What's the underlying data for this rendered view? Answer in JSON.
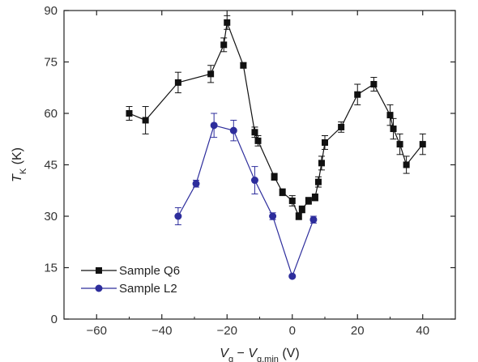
{
  "chart_data": {
    "type": "scatter",
    "xlabel": {
      "main": "V",
      "sub1": "g",
      "minus": " − ",
      "main2": "V",
      "sub2": "g,min",
      "unit": " (V)"
    },
    "ylabel": {
      "main": "T",
      "sub": "K",
      "unit": " (K)"
    },
    "xlim": [
      -70,
      50
    ],
    "ylim": [
      0,
      90
    ],
    "xticks": [
      -60,
      -40,
      -20,
      0,
      20,
      40
    ],
    "yticks": [
      0,
      15,
      30,
      45,
      60,
      75,
      90
    ],
    "grid": false,
    "legend_position": "bottom-left",
    "series": [
      {
        "name": "Sample Q6",
        "color": "#111111",
        "marker": "square",
        "points": [
          {
            "x": -50,
            "y": 60,
            "err": 2
          },
          {
            "x": -45,
            "y": 58,
            "err": 4
          },
          {
            "x": -35,
            "y": 69,
            "err": 3
          },
          {
            "x": -25,
            "y": 71.5,
            "err": 2.5
          },
          {
            "x": -21,
            "y": 80,
            "err": 2
          },
          {
            "x": -20,
            "y": 86.5,
            "err": 2
          },
          {
            "x": -15,
            "y": 74,
            "err": 0.8
          },
          {
            "x": -11.5,
            "y": 54.5,
            "err": 1.5
          },
          {
            "x": -10.5,
            "y": 52,
            "err": 1.5
          },
          {
            "x": -5.5,
            "y": 41.5,
            "err": 1
          },
          {
            "x": -3,
            "y": 37,
            "err": 1
          },
          {
            "x": 0,
            "y": 34.5,
            "err": 1.5
          },
          {
            "x": 2,
            "y": 30,
            "err": 1
          },
          {
            "x": 3,
            "y": 32,
            "err": 1
          },
          {
            "x": 5,
            "y": 34.5,
            "err": 1
          },
          {
            "x": 7,
            "y": 35.5,
            "err": 1
          },
          {
            "x": 8,
            "y": 40,
            "err": 1.5
          },
          {
            "x": 9,
            "y": 45.5,
            "err": 2
          },
          {
            "x": 10,
            "y": 51.5,
            "err": 2
          },
          {
            "x": 15,
            "y": 56,
            "err": 1.5
          },
          {
            "x": 20,
            "y": 65.5,
            "err": 3
          },
          {
            "x": 25,
            "y": 68.5,
            "err": 2
          },
          {
            "x": 30,
            "y": 59.5,
            "err": 3
          },
          {
            "x": 31,
            "y": 55.5,
            "err": 3
          },
          {
            "x": 33,
            "y": 51,
            "err": 3
          },
          {
            "x": 35,
            "y": 45,
            "err": 2.5
          },
          {
            "x": 40,
            "y": 51,
            "err": 3
          }
        ]
      },
      {
        "name": "Sample L2",
        "color": "#2d2d9c",
        "marker": "circle",
        "points": [
          {
            "x": -35,
            "y": 30,
            "err": 2.5
          },
          {
            "x": -29.5,
            "y": 39.5,
            "err": 1
          },
          {
            "x": -24,
            "y": 56.5,
            "err": 3.5
          },
          {
            "x": -18,
            "y": 55,
            "err": 3
          },
          {
            "x": -11.5,
            "y": 40.5,
            "err": 4
          },
          {
            "x": -6,
            "y": 30,
            "err": 1
          },
          {
            "x": 0,
            "y": 12.5,
            "err": 0
          },
          {
            "x": 6.5,
            "y": 29,
            "err": 1
          }
        ]
      }
    ]
  }
}
